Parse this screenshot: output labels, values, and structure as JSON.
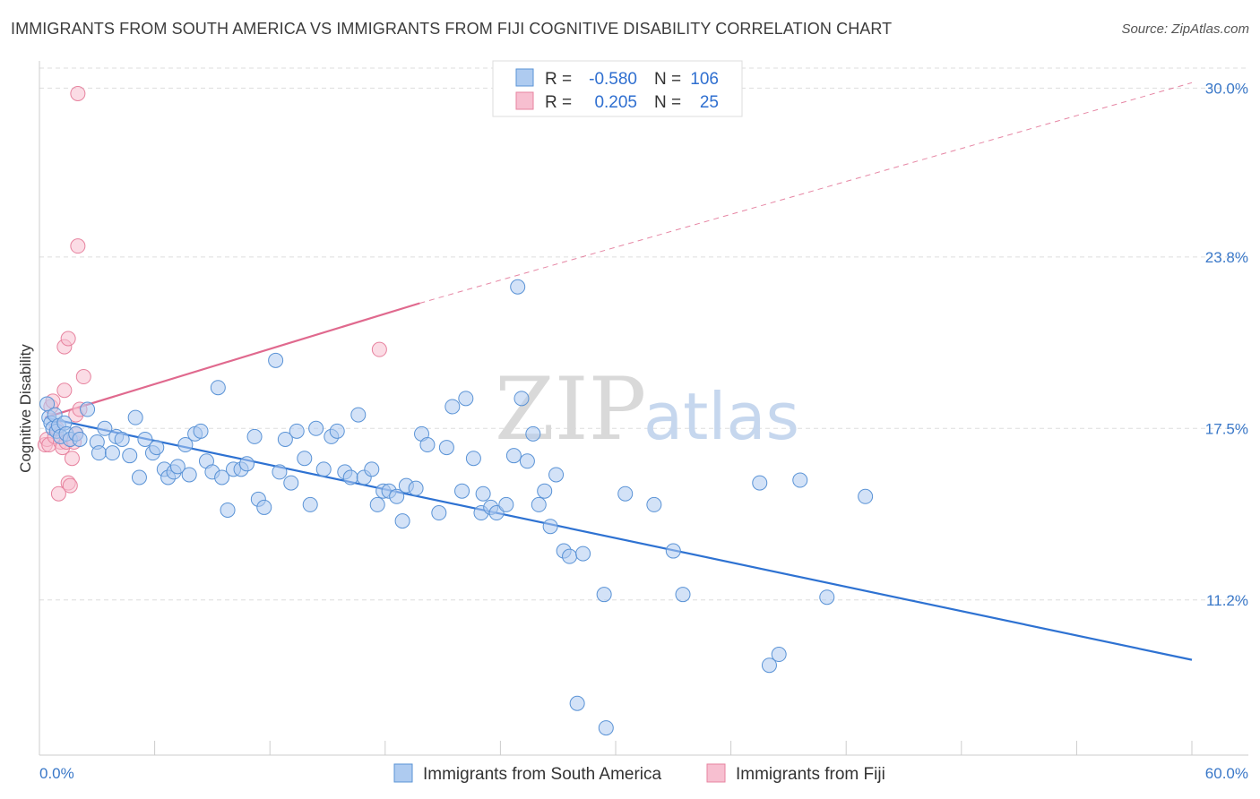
{
  "title": "IMMIGRANTS FROM SOUTH AMERICA VS IMMIGRANTS FROM FIJI COGNITIVE DISABILITY CORRELATION CHART",
  "source": "Source: ZipAtlas.com",
  "watermark": {
    "zip": "ZIP",
    "atlas": "atlas"
  },
  "colors": {
    "blue_fill": "#aecbf0",
    "blue_stroke": "#5a93d6",
    "blue_line": "#2e72d2",
    "pink_fill": "#f7bfd0",
    "pink_stroke": "#e7839f",
    "pink_line": "#e0698e",
    "grid": "#dddddd",
    "axis_text": "#3a78c8"
  },
  "legend": {
    "rows": [
      {
        "r_label": "R =",
        "r_value": "-0.580",
        "n_label": "N =",
        "n_value": "106"
      },
      {
        "r_label": "R =",
        "r_value": "0.205",
        "n_label": "N =",
        "n_value": "25"
      }
    ]
  },
  "bottom_legend": [
    "Immigrants from South America",
    "Immigrants from Fiji"
  ],
  "chart_data": {
    "type": "scatter",
    "title": "IMMIGRANTS FROM SOUTH AMERICA VS IMMIGRANTS FROM FIJI COGNITIVE DISABILITY CORRELATION CHART",
    "ylabel": "Cognitive Disability",
    "xlabel": "",
    "x_tick_labels": [
      "0.0%",
      "60.0%"
    ],
    "y_tick_labels": [
      "30.0%",
      "23.8%",
      "17.5%",
      "11.2%"
    ],
    "y_ticks": [
      30.0,
      23.8,
      17.5,
      11.2
    ],
    "xlim": [
      0,
      60
    ],
    "ylim": [
      5.5,
      31.0
    ],
    "grid": true,
    "legend_position": "top-center",
    "series": [
      {
        "name": "Immigrants from South America",
        "color": "#5a93d6",
        "R": -0.58,
        "N": 106,
        "trend": {
          "x": [
            0.3,
            60
          ],
          "y": [
            17.9,
            9.0
          ]
        },
        "points": [
          [
            0.4,
            18.4
          ],
          [
            0.5,
            17.9
          ],
          [
            0.6,
            17.7
          ],
          [
            0.7,
            17.5
          ],
          [
            0.8,
            18.0
          ],
          [
            0.9,
            17.4
          ],
          [
            1.0,
            17.6
          ],
          [
            1.1,
            17.2
          ],
          [
            1.3,
            17.7
          ],
          [
            1.4,
            17.3
          ],
          [
            1.6,
            17.1
          ],
          [
            1.9,
            17.3
          ],
          [
            2.1,
            17.1
          ],
          [
            2.5,
            18.2
          ],
          [
            3.0,
            17.0
          ],
          [
            3.1,
            16.6
          ],
          [
            3.4,
            17.5
          ],
          [
            3.8,
            16.6
          ],
          [
            4.0,
            17.2
          ],
          [
            4.3,
            17.1
          ],
          [
            4.7,
            16.5
          ],
          [
            5.0,
            17.9
          ],
          [
            5.2,
            15.7
          ],
          [
            5.5,
            17.1
          ],
          [
            5.9,
            16.6
          ],
          [
            6.1,
            16.8
          ],
          [
            6.5,
            16.0
          ],
          [
            6.7,
            15.7
          ],
          [
            7.0,
            15.9
          ],
          [
            7.2,
            16.1
          ],
          [
            7.6,
            16.9
          ],
          [
            7.8,
            15.8
          ],
          [
            8.1,
            17.3
          ],
          [
            8.4,
            17.4
          ],
          [
            8.7,
            16.3
          ],
          [
            9.0,
            15.9
          ],
          [
            9.3,
            19.0
          ],
          [
            9.5,
            15.7
          ],
          [
            9.8,
            14.5
          ],
          [
            10.1,
            16.0
          ],
          [
            10.5,
            16.0
          ],
          [
            10.8,
            16.2
          ],
          [
            11.2,
            17.2
          ],
          [
            11.4,
            14.9
          ],
          [
            11.7,
            14.6
          ],
          [
            12.3,
            20.0
          ],
          [
            12.5,
            15.9
          ],
          [
            12.8,
            17.1
          ],
          [
            13.1,
            15.5
          ],
          [
            13.4,
            17.4
          ],
          [
            13.8,
            16.4
          ],
          [
            14.1,
            14.7
          ],
          [
            14.4,
            17.5
          ],
          [
            14.8,
            16.0
          ],
          [
            15.2,
            17.2
          ],
          [
            15.5,
            17.4
          ],
          [
            15.9,
            15.9
          ],
          [
            16.2,
            15.7
          ],
          [
            16.6,
            18.0
          ],
          [
            16.9,
            15.7
          ],
          [
            17.3,
            16.0
          ],
          [
            17.6,
            14.7
          ],
          [
            17.9,
            15.2
          ],
          [
            18.2,
            15.2
          ],
          [
            18.6,
            15.0
          ],
          [
            18.9,
            14.1
          ],
          [
            19.1,
            15.4
          ],
          [
            19.6,
            15.3
          ],
          [
            19.9,
            17.3
          ],
          [
            20.2,
            16.9
          ],
          [
            20.8,
            14.4
          ],
          [
            21.2,
            16.8
          ],
          [
            21.5,
            18.3
          ],
          [
            22.0,
            15.2
          ],
          [
            22.2,
            18.6
          ],
          [
            22.6,
            16.4
          ],
          [
            23.0,
            14.4
          ],
          [
            23.1,
            15.1
          ],
          [
            23.5,
            14.6
          ],
          [
            23.8,
            14.4
          ],
          [
            24.3,
            14.7
          ],
          [
            24.7,
            16.5
          ],
          [
            24.9,
            22.7
          ],
          [
            25.1,
            18.6
          ],
          [
            25.4,
            16.3
          ],
          [
            25.7,
            17.3
          ],
          [
            26.0,
            14.7
          ],
          [
            26.3,
            15.2
          ],
          [
            26.6,
            13.9
          ],
          [
            26.9,
            15.8
          ],
          [
            27.3,
            13.0
          ],
          [
            27.6,
            12.8
          ],
          [
            28.3,
            12.9
          ],
          [
            29.4,
            11.4
          ],
          [
            28.0,
            7.4
          ],
          [
            29.5,
            6.5
          ],
          [
            30.5,
            15.1
          ],
          [
            32.0,
            14.7
          ],
          [
            33.0,
            13.0
          ],
          [
            33.5,
            11.4
          ],
          [
            37.5,
            15.5
          ],
          [
            38.0,
            8.8
          ],
          [
            38.5,
            9.2
          ],
          [
            39.6,
            15.6
          ],
          [
            41.0,
            11.3
          ],
          [
            43.0,
            15.0
          ]
        ]
      },
      {
        "name": "Immigrants from Fiji",
        "color": "#e7839f",
        "R": 0.205,
        "N": 25,
        "trend": {
          "x": [
            0.3,
            19.8
          ],
          "y": [
            17.9,
            22.1
          ],
          "dashed_to": {
            "x": 60,
            "y": 30.2
          }
        },
        "points": [
          [
            0.3,
            16.9
          ],
          [
            0.4,
            17.1
          ],
          [
            0.5,
            16.9
          ],
          [
            0.6,
            18.3
          ],
          [
            0.7,
            18.5
          ],
          [
            0.8,
            17.2
          ],
          [
            0.9,
            17.5
          ],
          [
            1.0,
            15.1
          ],
          [
            1.1,
            17.0
          ],
          [
            1.2,
            16.8
          ],
          [
            1.3,
            18.9
          ],
          [
            1.4,
            17.0
          ],
          [
            1.5,
            15.5
          ],
          [
            1.6,
            15.4
          ],
          [
            1.7,
            16.4
          ],
          [
            1.8,
            17.0
          ],
          [
            1.9,
            18.0
          ],
          [
            2.1,
            18.2
          ],
          [
            2.3,
            19.4
          ],
          [
            2.0,
            29.8
          ],
          [
            1.3,
            20.5
          ],
          [
            1.5,
            20.8
          ],
          [
            2.0,
            24.2
          ],
          [
            17.7,
            20.4
          ],
          [
            1.9,
            17.3
          ]
        ]
      }
    ]
  }
}
